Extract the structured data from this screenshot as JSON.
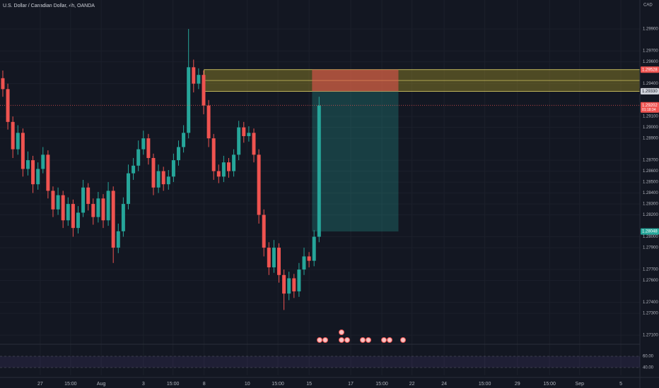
{
  "chart_data": {
    "type": "candlestick",
    "title": "U.S. Dollar / Canadian Dollar, 4h, OANDA",
    "currency": "CAD",
    "up_color": "#26a69a",
    "down_color": "#ef5350",
    "ylim": [
      1.27023,
      1.30165
    ],
    "xlim": [
      -0.56,
      126.9
    ],
    "yticks": [
      {
        "value": 1.299,
        "label": "1.29900"
      },
      {
        "value": 1.297,
        "label": "1.29700"
      },
      {
        "value": 1.296,
        "label": "1.29600"
      },
      {
        "value": 1.294,
        "label": "1.29400"
      },
      {
        "value": 1.291,
        "label": "1.29100"
      },
      {
        "value": 1.29,
        "label": "1.29000"
      },
      {
        "value": 1.289,
        "label": "1.28900"
      },
      {
        "value": 1.287,
        "label": "1.28700"
      },
      {
        "value": 1.286,
        "label": "1.28600"
      },
      {
        "value": 1.285,
        "label": "1.28500"
      },
      {
        "value": 1.284,
        "label": "1.28400"
      },
      {
        "value": 1.283,
        "label": "1.28300"
      },
      {
        "value": 1.282,
        "label": "1.28200"
      },
      {
        "value": 1.28,
        "label": "1.28000"
      },
      {
        "value": 1.279,
        "label": "1.27900"
      },
      {
        "value": 1.277,
        "label": "1.27700"
      },
      {
        "value": 1.276,
        "label": "1.27600"
      },
      {
        "value": 1.274,
        "label": "1.27400"
      },
      {
        "value": 1.273,
        "label": "1.27300"
      },
      {
        "value": 1.271,
        "label": "1.27100"
      }
    ],
    "xticks": [
      {
        "value": 7.46,
        "label": "27"
      },
      {
        "value": 13.5,
        "label": "15:00"
      },
      {
        "value": 19.6,
        "label": "Aug"
      },
      {
        "value": 28,
        "label": "3"
      },
      {
        "value": 33.9,
        "label": "15:00"
      },
      {
        "value": 40.1,
        "label": "8"
      },
      {
        "value": 48.7,
        "label": "10"
      },
      {
        "value": 54.8,
        "label": "15:00"
      },
      {
        "value": 61,
        "label": "15"
      },
      {
        "value": 69.3,
        "label": "17"
      },
      {
        "value": 75.5,
        "label": "15:00"
      },
      {
        "value": 81.5,
        "label": "22"
      },
      {
        "value": 87.9,
        "label": "24"
      },
      {
        "value": 96,
        "label": "15:00"
      },
      {
        "value": 102.5,
        "label": "29"
      },
      {
        "value": 108.9,
        "label": "15:00"
      },
      {
        "value": 114.9,
        "label": "Sep"
      },
      {
        "value": 123.1,
        "label": "5"
      }
    ],
    "candles": [
      [
        1.2945,
        1.2952,
        1.2928,
        1.2935
      ],
      [
        1.2935,
        1.294,
        1.2898,
        1.2905
      ],
      [
        1.2905,
        1.291,
        1.2872,
        1.288
      ],
      [
        1.288,
        1.2902,
        1.2875,
        1.2895
      ],
      [
        1.2895,
        1.2899,
        1.2855,
        1.2862
      ],
      [
        1.2862,
        1.2878,
        1.2856,
        1.287
      ],
      [
        1.287,
        1.2874,
        1.284,
        1.2848
      ],
      [
        1.2848,
        1.2868,
        1.2843,
        1.2862
      ],
      [
        1.2862,
        1.2882,
        1.2858,
        1.2875
      ],
      [
        1.2875,
        1.2879,
        1.2835,
        1.2842
      ],
      [
        1.2842,
        1.2846,
        1.2818,
        1.2825
      ],
      [
        1.2825,
        1.2845,
        1.282,
        1.2838
      ],
      [
        1.2838,
        1.2842,
        1.2808,
        1.2815
      ],
      [
        1.2815,
        1.2836,
        1.281,
        1.283
      ],
      [
        1.283,
        1.2834,
        1.28,
        1.2808
      ],
      [
        1.2808,
        1.2828,
        1.2803,
        1.2822
      ],
      [
        1.2822,
        1.2852,
        1.2818,
        1.2845
      ],
      [
        1.2845,
        1.2849,
        1.2824,
        1.283
      ],
      [
        1.283,
        1.2835,
        1.2811,
        1.2818
      ],
      [
        1.2818,
        1.2841,
        1.2813,
        1.2835
      ],
      [
        1.2835,
        1.2839,
        1.2808,
        1.2815
      ],
      [
        1.2815,
        1.285,
        1.281,
        1.2842
      ],
      [
        1.2842,
        1.2846,
        1.2776,
        1.279
      ],
      [
        1.279,
        1.2812,
        1.2785,
        1.2805
      ],
      [
        1.2805,
        1.2836,
        1.28,
        1.283
      ],
      [
        1.283,
        1.2866,
        1.2825,
        1.2858
      ],
      [
        1.2858,
        1.2872,
        1.2852,
        1.2865
      ],
      [
        1.2865,
        1.2888,
        1.286,
        1.288
      ],
      [
        1.288,
        1.2897,
        1.2875,
        1.289
      ],
      [
        1.289,
        1.2894,
        1.2866,
        1.2872
      ],
      [
        1.2872,
        1.2876,
        1.2838,
        1.2845
      ],
      [
        1.2845,
        1.2866,
        1.284,
        1.286
      ],
      [
        1.286,
        1.2864,
        1.2842,
        1.2848
      ],
      [
        1.2848,
        1.2861,
        1.2843,
        1.2855
      ],
      [
        1.2855,
        1.2876,
        1.285,
        1.287
      ],
      [
        1.287,
        1.2888,
        1.2865,
        1.2882
      ],
      [
        1.2882,
        1.2902,
        1.2877,
        1.2895
      ],
      [
        1.2895,
        1.299,
        1.289,
        1.2955
      ],
      [
        1.2955,
        1.2962,
        1.2932,
        1.294
      ],
      [
        1.294,
        1.2954,
        1.2935,
        1.2948
      ],
      [
        1.2948,
        1.2952,
        1.2912,
        1.292
      ],
      [
        1.292,
        1.2925,
        1.2882,
        1.289
      ],
      [
        1.289,
        1.2894,
        1.2852,
        1.286
      ],
      [
        1.286,
        1.2866,
        1.2849,
        1.2855
      ],
      [
        1.2855,
        1.2874,
        1.285,
        1.2868
      ],
      [
        1.2868,
        1.2872,
        1.2854,
        1.286
      ],
      [
        1.286,
        1.288,
        1.2855,
        1.2875
      ],
      [
        1.2875,
        1.2906,
        1.287,
        1.29
      ],
      [
        1.29,
        1.2905,
        1.2886,
        1.2892
      ],
      [
        1.2892,
        1.2901,
        1.2887,
        1.2895
      ],
      [
        1.2895,
        1.2899,
        1.2868,
        1.2875
      ],
      [
        1.2875,
        1.288,
        1.2812,
        1.282
      ],
      [
        1.282,
        1.2825,
        1.2782,
        1.279
      ],
      [
        1.279,
        1.2795,
        1.2765,
        1.2772
      ],
      [
        1.2772,
        1.2797,
        1.2767,
        1.279
      ],
      [
        1.279,
        1.2794,
        1.2758,
        1.2765
      ],
      [
        1.2765,
        1.277,
        1.2733,
        1.2748
      ],
      [
        1.2748,
        1.2768,
        1.2742,
        1.2762
      ],
      [
        1.2762,
        1.2766,
        1.2744,
        1.275
      ],
      [
        1.275,
        1.2776,
        1.2745,
        1.277
      ],
      [
        1.277,
        1.279,
        1.2765,
        1.2782
      ],
      [
        1.2782,
        1.2786,
        1.2772,
        1.2778
      ],
      [
        1.2778,
        1.2806,
        1.2773,
        1.28
      ],
      [
        1.28,
        1.2928,
        1.2795,
        1.292
      ]
    ],
    "zone": {
      "top": 1.29528,
      "bottom": 1.2933,
      "start": 40.1
    },
    "position": {
      "stop": 1.29528,
      "entry": 1.2933,
      "target": 1.28048,
      "start": 61.6,
      "end": 78.8
    },
    "price_labels": [
      {
        "value": 1.29528,
        "color": "#ef5350"
      },
      {
        "value": 1.2933,
        "label": "1.29330",
        "color": "#d1d4dc"
      },
      {
        "value": 1.29202,
        "color": "#ef5350"
      },
      {
        "value": 1.28048,
        "color": "#26a69a"
      }
    ],
    "countdown": "01:18:34",
    "rsi": {
      "ylim": [
        26.25,
        78.75
      ],
      "yticks": [
        {
          "value": 60,
          "label": "60.00"
        },
        {
          "value": 40,
          "label": "40.00"
        }
      ]
    }
  }
}
